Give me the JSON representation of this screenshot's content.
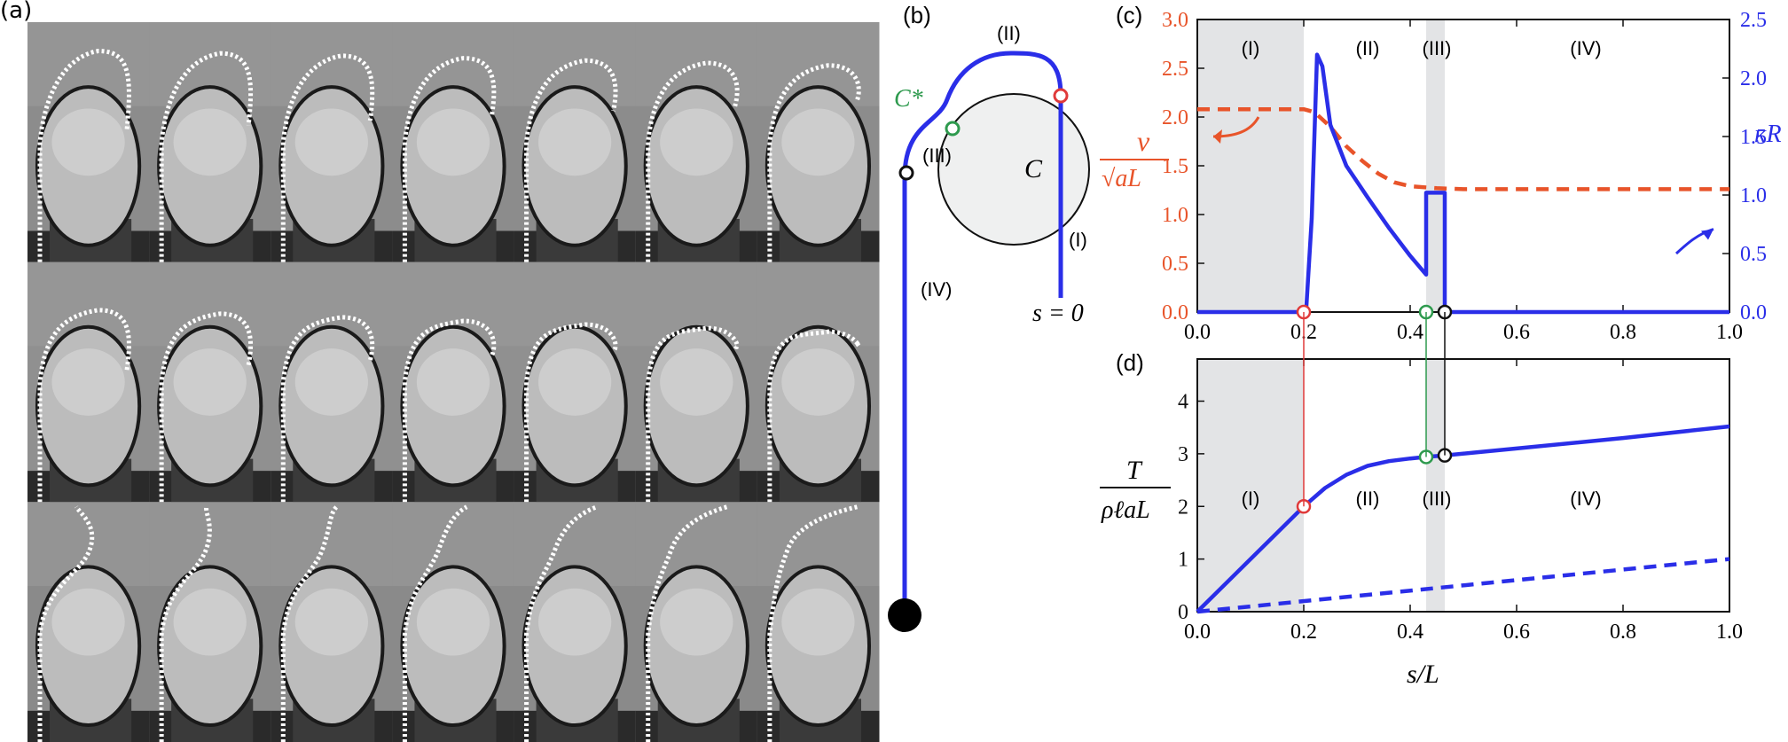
{
  "panels": {
    "a": {
      "label": "(a)",
      "rows": 3,
      "cols": 7
    },
    "b": {
      "label": "(b)",
      "regions": [
        "(I)",
        "(II)",
        "(III)",
        "(IV)"
      ],
      "point_c": "C",
      "point_cstar": "C*",
      "origin_label": "s = 0"
    },
    "c": {
      "label": "(c)",
      "regions": [
        "(I)",
        "(II)",
        "(III)",
        "(IV)"
      ],
      "left_axis_label_num": "v",
      "left_axis_label_den": "√aL",
      "right_axis_label": "κR",
      "left_ticks": [
        "0.0",
        "0.5",
        "1.0",
        "1.5",
        "2.0",
        "2.5",
        "3.0"
      ],
      "right_ticks": [
        "0.0",
        "0.5",
        "1.0",
        "1.5",
        "2.0",
        "2.5"
      ],
      "x_ticks": [
        "0.0",
        "0.2",
        "0.4",
        "0.6",
        "0.8",
        "1.0"
      ]
    },
    "d": {
      "label": "(d)",
      "regions": [
        "(I)",
        "(II)",
        "(III)",
        "(IV)"
      ],
      "y_label_num": "T",
      "y_label_den": "ρℓaL",
      "y_ticks": [
        "0",
        "1",
        "2",
        "3",
        "4"
      ],
      "x_ticks": [
        "0.0",
        "0.2",
        "0.4",
        "0.6",
        "0.8",
        "1.0"
      ],
      "x_label": "s/L"
    }
  },
  "colors": {
    "blue": "#2a2ee8",
    "orange": "#e8542a",
    "red_marker": "#e03a3a",
    "green_marker": "#2e9a4e",
    "shade": "#e3e4e6"
  },
  "chart_data": [
    {
      "type": "line",
      "panel": "c",
      "xlabel": "",
      "ylabel": "v/√aL",
      "y2label": "κR",
      "xlim": [
        0,
        1
      ],
      "ylim": [
        0,
        3
      ],
      "y2lim": [
        0,
        2.5
      ],
      "shaded_regions": [
        [
          0,
          0.2
        ],
        [
          0.43,
          0.465
        ]
      ],
      "series": [
        {
          "axis": "left",
          "style": "dashed",
          "x": [
            0,
            0.2,
            0.22,
            0.25,
            0.28,
            0.31,
            0.34,
            0.37,
            0.4,
            0.45,
            0.5,
            1.0
          ],
          "y": [
            2.08,
            2.08,
            2.05,
            1.9,
            1.7,
            1.55,
            1.42,
            1.33,
            1.29,
            1.27,
            1.26,
            1.26
          ]
        },
        {
          "axis": "right",
          "style": "solid",
          "x": [
            0,
            0.2,
            0.205,
            0.215,
            0.225,
            0.235,
            0.25,
            0.28,
            0.32,
            0.36,
            0.4,
            0.43,
            0.43,
            0.465,
            0.465,
            1.0
          ],
          "y": [
            0,
            0,
            0.05,
            0.8,
            2.2,
            2.1,
            1.6,
            1.25,
            0.98,
            0.72,
            0.48,
            0.32,
            1.02,
            1.02,
            0,
            0
          ]
        }
      ],
      "markers": [
        {
          "x": 0.2,
          "color": "red"
        },
        {
          "x": 0.43,
          "color": "green"
        },
        {
          "x": 0.465,
          "color": "black"
        }
      ]
    },
    {
      "type": "line",
      "panel": "d",
      "xlabel": "s/L",
      "ylabel": "T/ρℓaL",
      "xlim": [
        0,
        1
      ],
      "ylim": [
        0,
        4.8
      ],
      "shaded_regions": [
        [
          0,
          0.2
        ],
        [
          0.43,
          0.465
        ]
      ],
      "series": [
        {
          "style": "solid",
          "x": [
            0,
            0.2,
            0.24,
            0.28,
            0.32,
            0.36,
            0.4,
            0.43,
            0.465,
            0.6,
            0.8,
            1.0
          ],
          "y": [
            0,
            2.0,
            2.35,
            2.6,
            2.77,
            2.86,
            2.91,
            2.94,
            2.97,
            3.1,
            3.3,
            3.52
          ]
        },
        {
          "style": "dashed",
          "x": [
            0,
            1.0
          ],
          "y": [
            0,
            1.0
          ]
        }
      ],
      "markers": [
        {
          "x": 0.2,
          "y": 2.0,
          "color": "red"
        },
        {
          "x": 0.43,
          "y": 2.94,
          "color": "green"
        },
        {
          "x": 0.465,
          "y": 2.97,
          "color": "black"
        }
      ]
    }
  ]
}
